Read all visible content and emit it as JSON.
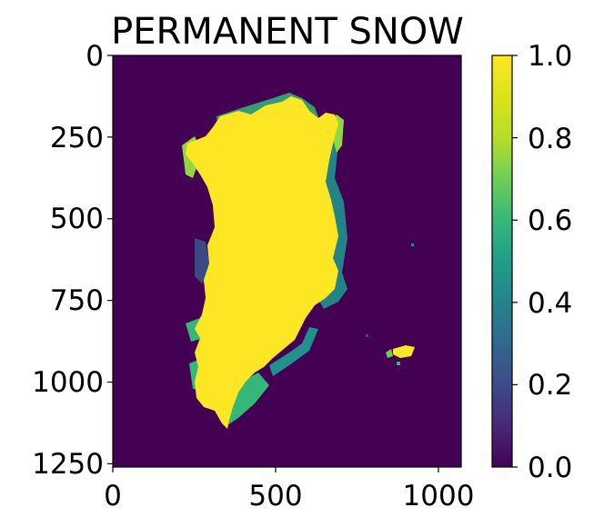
{
  "chart_data": {
    "type": "heatmap",
    "title": "PERMANENT SNOW",
    "xlabel": "",
    "ylabel": "",
    "xlim": [
      0,
      1070
    ],
    "ylim": [
      1260,
      0
    ],
    "x_ticks": [
      "0",
      "500",
      "1000"
    ],
    "x_tick_values": [
      0,
      500,
      1000
    ],
    "y_ticks": [
      "0",
      "250",
      "500",
      "750",
      "1000",
      "1250"
    ],
    "y_tick_values": [
      0,
      250,
      500,
      750,
      1000,
      1250
    ],
    "colorbar": {
      "colormap": "viridis",
      "range": [
        0.0,
        1.0
      ],
      "ticks": [
        "0.0",
        "0.2",
        "0.4",
        "0.6",
        "0.8",
        "1.0"
      ],
      "tick_values": [
        0.0,
        0.2,
        0.4,
        0.6,
        0.8,
        1.0
      ]
    },
    "background_value": 0.0,
    "ice_sheet_value": 1.0,
    "colors": {
      "background": "#440154",
      "ice": "#fde725",
      "edge_green": "#35b779",
      "edge_teal": "#21918c",
      "edge_blue": "#3b528b",
      "edge_lime": "#90d743"
    }
  }
}
